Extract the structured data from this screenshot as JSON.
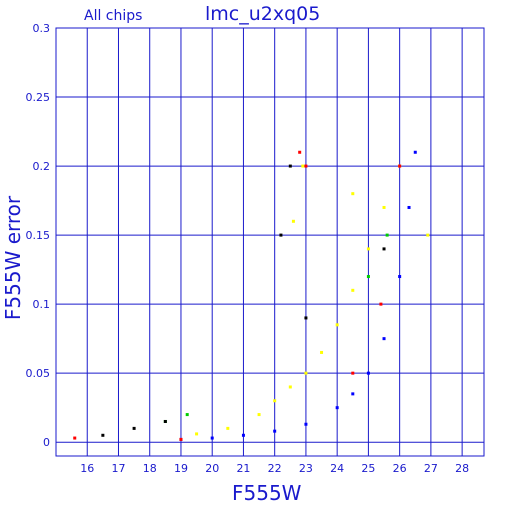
{
  "chart_data": {
    "type": "scatter",
    "title": "lmc_u2xq05",
    "subtitle": "All chips",
    "xlabel": "F555W",
    "ylabel": "F555W error",
    "xlim": [
      15,
      28.7
    ],
    "ylim": [
      -0.01,
      0.3
    ],
    "grid": true,
    "x_ticks": [
      16,
      17,
      18,
      19,
      20,
      21,
      22,
      23,
      24,
      25,
      26,
      27,
      28
    ],
    "y_ticks": [
      0,
      0.05,
      0.1,
      0.15,
      0.2,
      0.25,
      0.3
    ],
    "y_tick_labels": [
      "0",
      "0.05",
      "0.1",
      "0.15",
      "0.2",
      "0.25",
      "0.3"
    ],
    "colors": {
      "axis": "#1a1acc",
      "grid": "#1a1acc",
      "yellow": "#ffff00",
      "blue": "#0000ff",
      "red": "#ff0000",
      "green": "#00cc00",
      "black": "#000000"
    },
    "series": [
      {
        "color": "yellow",
        "values": [
          [
            19.5,
            0.006
          ],
          [
            20.5,
            0.01
          ],
          [
            21.5,
            0.02
          ],
          [
            22.0,
            0.03
          ],
          [
            22.5,
            0.04
          ],
          [
            23.0,
            0.05
          ],
          [
            23.5,
            0.065
          ],
          [
            24.0,
            0.085
          ],
          [
            24.5,
            0.11
          ],
          [
            25.0,
            0.14
          ],
          [
            25.5,
            0.17
          ],
          [
            26.0,
            0.2
          ],
          [
            22.6,
            0.16
          ],
          [
            22.9,
            0.2
          ],
          [
            26.9,
            0.15
          ],
          [
            24.5,
            0.18
          ]
        ]
      },
      {
        "color": "blue",
        "values": [
          [
            19.0,
            0.002
          ],
          [
            20.0,
            0.003
          ],
          [
            21.0,
            0.005
          ],
          [
            22.0,
            0.008
          ],
          [
            23.0,
            0.013
          ],
          [
            24.0,
            0.025
          ],
          [
            24.5,
            0.035
          ],
          [
            25.0,
            0.05
          ],
          [
            25.5,
            0.075
          ],
          [
            26.0,
            0.12
          ],
          [
            26.3,
            0.17
          ],
          [
            26.5,
            0.21
          ]
        ]
      },
      {
        "color": "red",
        "values": [
          [
            15.6,
            0.003
          ],
          [
            19.0,
            0.002
          ],
          [
            22.8,
            0.21
          ],
          [
            23.0,
            0.2
          ],
          [
            24.5,
            0.05
          ],
          [
            25.4,
            0.1
          ],
          [
            26.0,
            0.2
          ]
        ]
      },
      {
        "color": "green",
        "values": [
          [
            18.5,
            0.015
          ],
          [
            19.2,
            0.02
          ],
          [
            25.0,
            0.12
          ],
          [
            25.6,
            0.15
          ]
        ]
      },
      {
        "color": "black",
        "values": [
          [
            16.5,
            0.005
          ],
          [
            17.5,
            0.01
          ],
          [
            18.5,
            0.015
          ],
          [
            22.2,
            0.15
          ],
          [
            22.5,
            0.2
          ],
          [
            23.0,
            0.09
          ],
          [
            25.5,
            0.14
          ]
        ]
      }
    ]
  }
}
